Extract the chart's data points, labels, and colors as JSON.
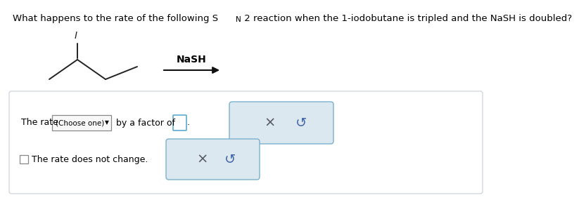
{
  "question_part1": "What happens to the rate of the following S",
  "question_sub": "N",
  "question_part2": " 2 reaction when the 1-iodobutane is tripled and the NaSH is doubled?",
  "nash_label": "NaSH",
  "row1_pre": "The rate ",
  "row1_dropdown": "(Choose one)",
  "row1_post": " by a factor of",
  "row2_text": "The rate does not change.",
  "background_color": "#ffffff",
  "text_color": "#000000",
  "border_light": "#c8d8e8",
  "btn_bg": "#dce8f0",
  "btn_border": "#7ab0cc",
  "dropdown_border": "#888888",
  "input_border": "#5baad0",
  "box_border": "#c0c8d0",
  "mol_color": "#222222",
  "arrow_color": "#111111"
}
